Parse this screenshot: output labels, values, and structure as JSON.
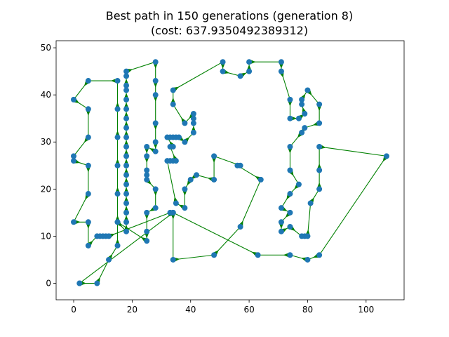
{
  "chart_data": {
    "type": "line",
    "title_line1": "Best path in 150 generations (generation 8)",
    "title_line2": "(cost: 637.9350492389312)",
    "xlabel": "",
    "ylabel": "",
    "xlim": [
      -6,
      113
    ],
    "ylim": [
      -3.5,
      51.5
    ],
    "xticks": [
      0,
      20,
      40,
      60,
      80,
      100
    ],
    "yticks": [
      0,
      10,
      20,
      30,
      40,
      50
    ],
    "grid": false,
    "colors": {
      "path": "#008000",
      "points": "#1f77b4"
    },
    "series": [
      {
        "name": "tour",
        "points": [
          [
            2,
            0
          ],
          [
            8,
            0
          ],
          [
            12,
            5
          ],
          [
            15,
            8
          ],
          [
            15,
            13
          ],
          [
            18,
            11
          ],
          [
            18,
            13
          ],
          [
            18,
            15
          ],
          [
            18,
            17
          ],
          [
            18,
            19
          ],
          [
            18,
            21
          ],
          [
            18,
            23
          ],
          [
            18,
            25
          ],
          [
            18,
            27
          ],
          [
            18,
            29
          ],
          [
            18,
            31
          ],
          [
            18,
            33
          ],
          [
            18,
            35
          ],
          [
            18,
            37
          ],
          [
            18,
            39
          ],
          [
            18,
            41
          ],
          [
            18,
            42
          ],
          [
            18,
            44
          ],
          [
            18,
            45
          ],
          [
            28,
            47
          ],
          [
            28,
            43
          ],
          [
            28,
            40
          ],
          [
            28,
            34
          ],
          [
            28,
            30
          ],
          [
            28,
            28
          ],
          [
            25,
            29
          ],
          [
            25,
            27
          ],
          [
            25,
            24
          ],
          [
            25,
            23
          ],
          [
            25,
            22
          ],
          [
            28,
            20
          ],
          [
            28,
            16
          ],
          [
            25,
            15
          ],
          [
            25,
            11
          ],
          [
            25,
            9
          ],
          [
            15,
            13
          ],
          [
            15,
            19
          ],
          [
            15,
            25
          ],
          [
            15,
            31
          ],
          [
            15,
            37
          ],
          [
            15,
            43
          ],
          [
            5,
            43
          ],
          [
            0,
            39
          ],
          [
            5,
            37
          ],
          [
            5,
            31
          ],
          [
            0,
            27
          ],
          [
            0,
            26
          ],
          [
            5,
            25
          ],
          [
            5,
            19
          ],
          [
            0,
            13
          ],
          [
            5,
            13
          ],
          [
            5,
            8
          ],
          [
            8,
            10
          ],
          [
            9,
            10
          ],
          [
            10,
            10
          ],
          [
            11,
            10
          ],
          [
            12,
            10
          ],
          [
            33,
            15
          ],
          [
            34,
            15
          ],
          [
            34,
            5
          ],
          [
            48,
            6
          ],
          [
            57,
            12
          ],
          [
            64,
            22
          ],
          [
            56,
            25
          ],
          [
            57,
            25
          ],
          [
            48,
            27
          ],
          [
            48,
            22
          ],
          [
            42,
            23
          ],
          [
            40,
            22
          ],
          [
            38,
            20
          ],
          [
            38,
            16
          ],
          [
            35,
            17
          ],
          [
            32,
            26
          ],
          [
            33,
            26
          ],
          [
            34,
            26
          ],
          [
            35,
            26
          ],
          [
            33,
            29
          ],
          [
            34,
            29
          ],
          [
            32,
            31
          ],
          [
            33,
            31
          ],
          [
            34,
            31
          ],
          [
            35,
            31
          ],
          [
            36,
            31
          ],
          [
            38,
            30
          ],
          [
            41,
            32
          ],
          [
            41,
            34
          ],
          [
            41,
            35
          ],
          [
            41,
            36
          ],
          [
            38,
            34
          ],
          [
            34,
            38
          ],
          [
            34,
            41
          ],
          [
            51,
            47
          ],
          [
            51,
            45
          ],
          [
            57,
            44
          ],
          [
            60,
            45
          ],
          [
            60,
            47
          ],
          [
            71,
            47
          ],
          [
            71,
            45
          ],
          [
            74,
            39
          ],
          [
            74,
            35
          ],
          [
            77,
            35
          ],
          [
            79,
            36
          ],
          [
            78,
            38
          ],
          [
            78,
            39
          ],
          [
            80,
            41
          ],
          [
            84,
            38
          ],
          [
            84,
            34
          ],
          [
            79,
            33
          ],
          [
            78,
            32
          ],
          [
            74,
            29
          ],
          [
            74,
            24
          ],
          [
            77,
            21
          ],
          [
            74,
            19
          ],
          [
            71,
            16
          ],
          [
            74,
            15
          ],
          [
            71,
            13
          ],
          [
            71,
            11
          ],
          [
            74,
            12
          ],
          [
            78,
            10
          ],
          [
            79,
            10
          ],
          [
            80,
            10
          ],
          [
            81,
            17
          ],
          [
            84,
            20
          ],
          [
            84,
            24
          ],
          [
            84,
            29
          ],
          [
            107,
            27
          ],
          [
            84,
            6
          ],
          [
            80,
            5
          ],
          [
            74,
            6
          ],
          [
            63,
            6
          ],
          [
            34,
            15
          ],
          [
            2,
            0
          ]
        ]
      }
    ]
  }
}
